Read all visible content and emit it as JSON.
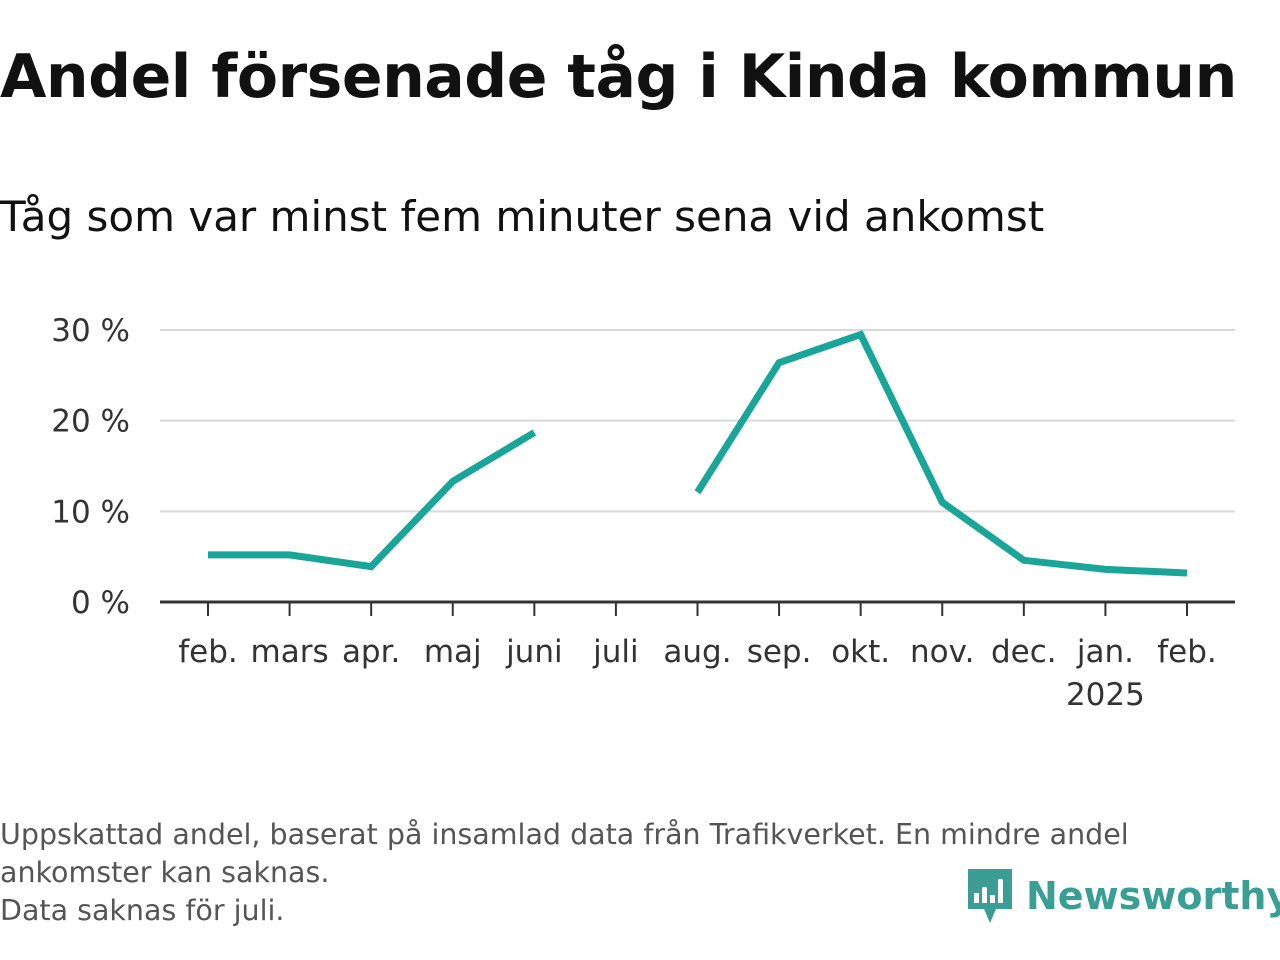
{
  "title": "Andel försenade tåg i Kinda kommun",
  "subtitle": "Tåg som var minst fem minuter sena vid ankomst",
  "chart_data": {
    "type": "line",
    "categories": [
      "feb.",
      "mars",
      "apr.",
      "maj",
      "juni",
      "juli",
      "aug.",
      "sep.",
      "okt.",
      "nov.",
      "dec.",
      "jan.",
      "feb."
    ],
    "category_sublabels": [
      "",
      "",
      "",
      "",
      "",
      "",
      "",
      "",
      "",
      "",
      "",
      "2025",
      ""
    ],
    "series": [
      {
        "values": [
          5.2,
          5.2,
          3.9,
          13.3,
          18.7,
          null,
          12.1,
          26.4,
          29.5,
          11.0,
          4.6,
          3.6,
          3.2
        ]
      }
    ],
    "yticks": [
      0,
      10,
      20,
      30
    ],
    "ytick_labels": [
      "0 %",
      "10 %",
      "20 %",
      "30 %"
    ],
    "ylim": [
      0,
      30
    ],
    "grid": true,
    "line_color": "#1aa599"
  },
  "footnote": {
    "line1": "Uppskattad andel, baserat på insamlad data från Trafikverket. En mindre andel",
    "line2": "ankomster kan saknas.",
    "line3": "Data saknas för juli."
  },
  "brand": {
    "name": "Newsworthy",
    "icon": "newsworthy-logo-icon",
    "color": "#3a9e95"
  }
}
